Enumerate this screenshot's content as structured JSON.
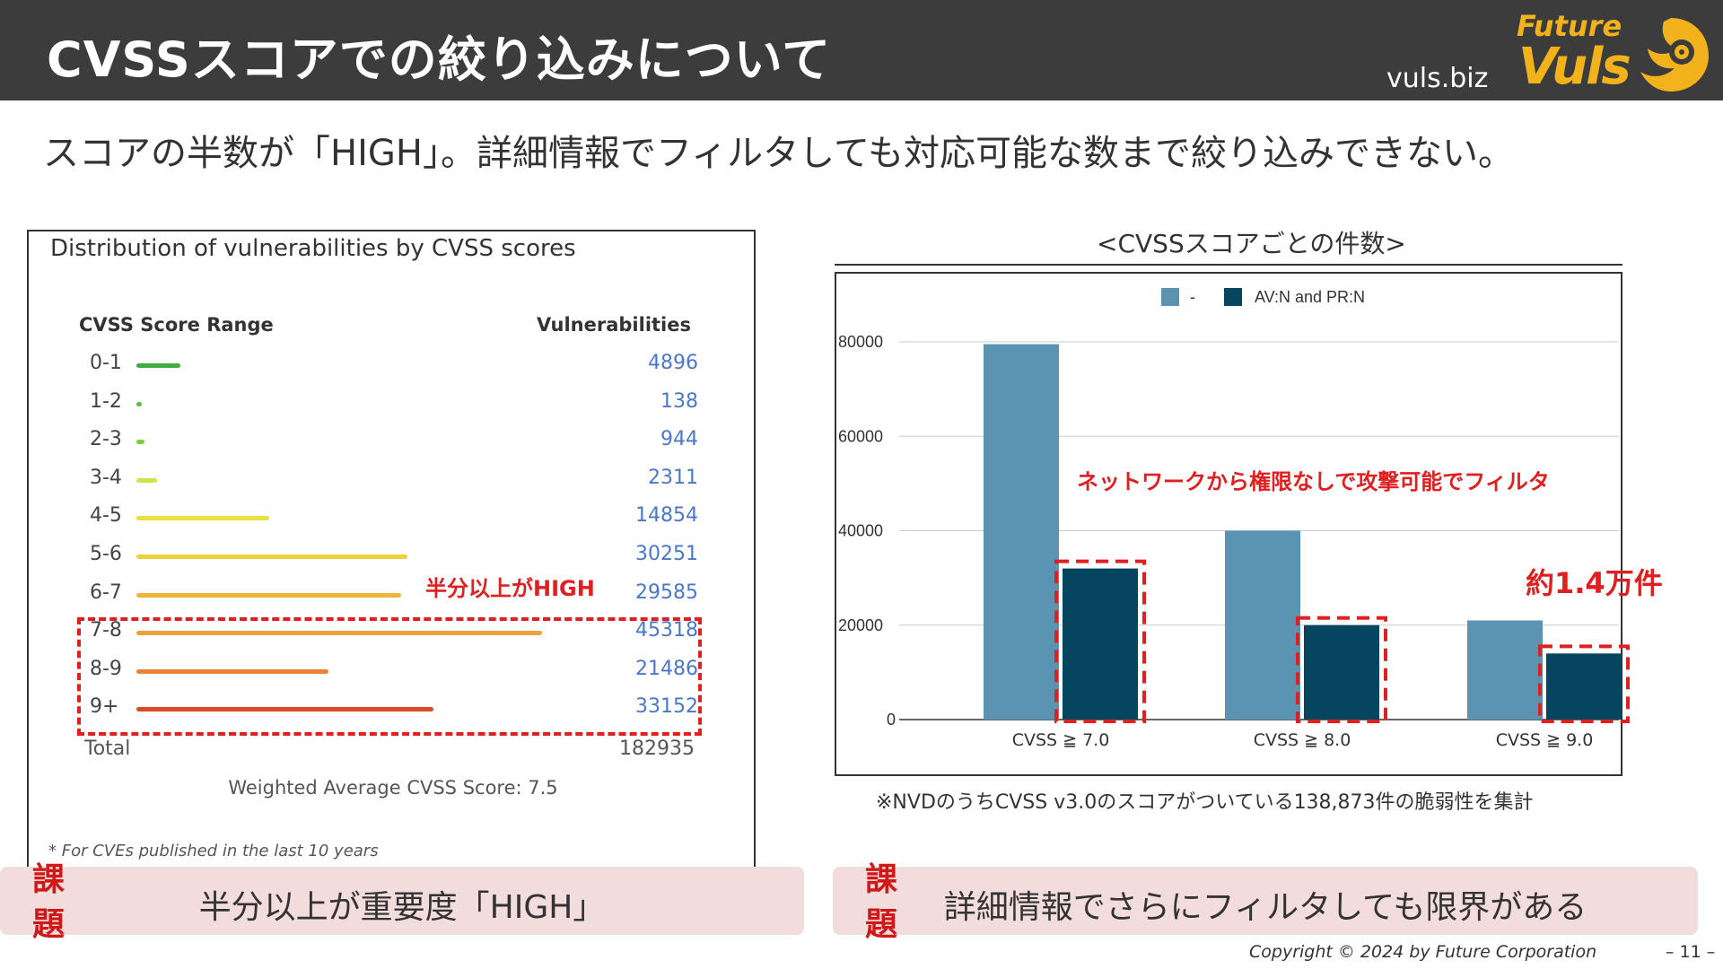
{
  "header": {
    "title": "CVSSスコアでの絞り込みについて",
    "site": "vuls.biz",
    "logo_top": "Future",
    "logo_main": "Vuls"
  },
  "subtitle": "スコアの半数が「HIGH」。詳細情報でフィルタしても対応可能な数まで絞り込みできない。",
  "distribution": {
    "title": "Distribution of vulnerabilities by CVSS scores",
    "col_range": "CVSS Score Range",
    "col_vulns": "Vulnerabilities",
    "rows": [
      {
        "range": "0-1",
        "value": "4896",
        "count": 4896,
        "color": "#3fae3f"
      },
      {
        "range": "1-2",
        "value": "138",
        "count": 138,
        "color": "#5cbf3a"
      },
      {
        "range": "2-3",
        "value": "944",
        "count": 944,
        "color": "#7ccf3a"
      },
      {
        "range": "3-4",
        "value": "2311",
        "count": 2311,
        "color": "#c8e84a"
      },
      {
        "range": "4-5",
        "value": "14854",
        "count": 14854,
        "color": "#e6e040"
      },
      {
        "range": "5-6",
        "value": "30251",
        "count": 30251,
        "color": "#ecd23a"
      },
      {
        "range": "6-7",
        "value": "29585",
        "count": 29585,
        "color": "#eeb43a"
      },
      {
        "range": "7-8",
        "value": "45318",
        "count": 45318,
        "color": "#eea040"
      },
      {
        "range": "8-9",
        "value": "21486",
        "count": 21486,
        "color": "#e8843a"
      },
      {
        "range": "9+",
        "value": "33152",
        "count": 33152,
        "color": "#dc4a2c"
      }
    ],
    "total_label": "Total",
    "total_value": "182935",
    "weighted_avg": "Weighted Average CVSS Score: 7.5",
    "footnote": "* For CVEs published in the last 10 years",
    "high_note": "半分以上がHIGH"
  },
  "chart_data": {
    "type": "bar",
    "title": "<CVSSスコアごとの件数>",
    "categories": [
      "CVSS ≧ 7.0",
      "CVSS ≧ 8.0",
      "CVSS ≧ 9.0"
    ],
    "series": [
      {
        "name": "-",
        "values": [
          79500,
          40000,
          21000
        ],
        "color": "#5b93b3"
      },
      {
        "name": "AV:N and PR:N",
        "values": [
          32000,
          20000,
          14000
        ],
        "color": "#05455f"
      }
    ],
    "ylim": [
      0,
      80000
    ],
    "yticks": [
      "0",
      "20000",
      "40000",
      "60000",
      "80000"
    ],
    "legend": "top-center",
    "annotation_filter": "ネットワークから権限なしで攻撃可能でフィルタ",
    "annotation_count": "約1.4万件"
  },
  "chart_note": "※NVDのうちCVSS v3.0のスコアがついている138,873件の脆弱性を集計",
  "problems": [
    {
      "tag": "課題",
      "text": "半分以上が重要度「HIGH」"
    },
    {
      "tag": "課題",
      "text": "詳細情報でさらにフィルタしても限界がある"
    }
  ],
  "footer": {
    "copyright": "Copyright © 2024 by Future  Corporation",
    "page": "– 11 –"
  }
}
